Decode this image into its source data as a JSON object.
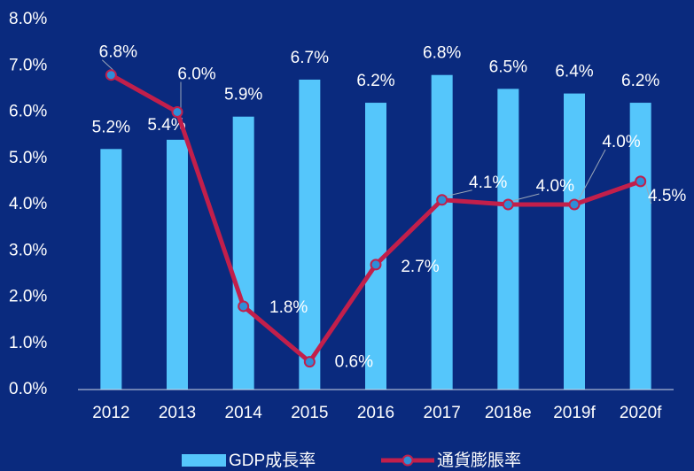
{
  "chart_data": {
    "type": "bar_line",
    "categories": [
      "2012",
      "2013",
      "2014",
      "2015",
      "2016",
      "2017",
      "2018e",
      "2019f",
      "2020f"
    ],
    "series": [
      {
        "name": "GDP成長率",
        "type": "bar",
        "color": "#55c6fb",
        "values": [
          5.2,
          5.4,
          5.9,
          6.7,
          6.2,
          6.8,
          6.5,
          6.4,
          6.2
        ],
        "value_labels": [
          "5.2%",
          "5.4%",
          "5.9%",
          "6.7%",
          "6.2%",
          "6.8%",
          "6.5%",
          "6.4%",
          "6.2%"
        ]
      },
      {
        "name": "通貨膨脹率",
        "type": "line",
        "color": "#c21f4b",
        "marker_color": "#2e8fd8",
        "values": [
          6.8,
          6.0,
          1.8,
          0.6,
          2.7,
          4.1,
          4.0,
          4.0,
          4.5
        ],
        "value_labels": [
          "6.8%",
          "6.0%",
          "1.8%",
          "0.6%",
          "2.7%",
          "4.1%",
          "4.0%",
          "4.0%",
          "4.5%"
        ]
      }
    ],
    "ylim": [
      0,
      8
    ],
    "yticks": [
      {
        "value": 0,
        "label": "0.0%"
      },
      {
        "value": 1,
        "label": "1.0%"
      },
      {
        "value": 2,
        "label": "2.0%"
      },
      {
        "value": 3,
        "label": "3.0%"
      },
      {
        "value": 4,
        "label": "4.0%"
      },
      {
        "value": 5,
        "label": "5.0%"
      },
      {
        "value": 6,
        "label": "6.0%"
      },
      {
        "value": 7,
        "label": "7.0%"
      },
      {
        "value": 8,
        "label": "8.0%"
      }
    ],
    "grid": false,
    "legend": "bottom"
  }
}
